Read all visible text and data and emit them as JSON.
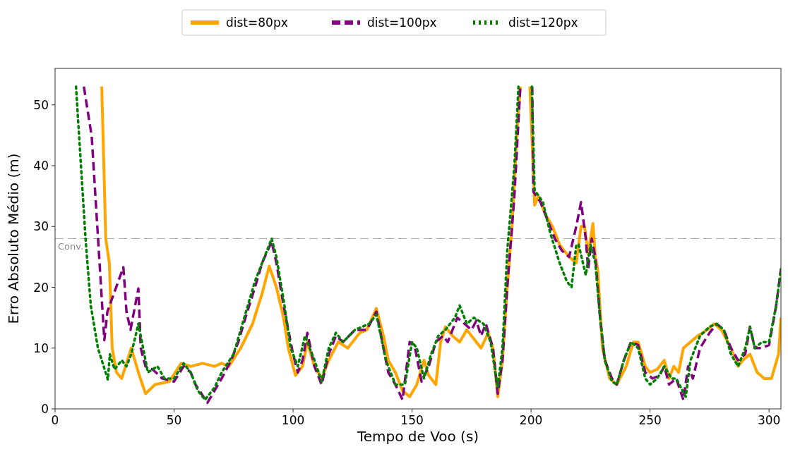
{
  "chart_data": {
    "type": "line",
    "xlabel": "Tempo de Voo (s)",
    "ylabel": "Erro Absoluto Médio (m)",
    "xlim": [
      0,
      305
    ],
    "xticks": [
      0,
      50,
      100,
      150,
      200,
      250,
      300
    ],
    "ylim": [
      0,
      56
    ],
    "yticks": [
      0,
      10,
      20,
      30,
      40,
      50
    ],
    "grid": false,
    "legend": "top",
    "ref_lines": [
      {
        "axis": "y",
        "value": 28,
        "label": "Conv.",
        "color": "#aaaaaa",
        "line_style": "dashed"
      }
    ],
    "series": [
      {
        "name": "dist=80px",
        "color": "#ffa500",
        "line_style": "solid",
        "x": [
          19.6,
          21.3,
          22.8,
          24,
          25.8,
          28,
          32,
          35,
          38,
          42,
          48,
          53,
          57,
          62,
          67,
          70,
          73,
          78,
          83,
          87,
          90,
          93,
          96,
          98,
          101,
          104,
          106,
          109,
          112,
          115,
          119,
          123,
          128,
          131,
          135,
          138,
          140,
          143,
          146,
          149,
          152,
          155,
          157,
          160,
          162,
          164,
          167,
          170,
          173,
          176,
          179,
          182,
          184,
          186,
          188,
          190,
          192,
          194,
          195.5,
          197.5,
          199.5,
          201.5,
          203,
          206,
          209,
          212,
          216,
          219,
          221,
          222.5,
          224,
          226,
          227,
          228,
          230,
          233,
          236,
          240,
          243,
          245,
          248,
          250,
          253,
          256,
          258,
          260,
          262,
          264,
          267,
          270,
          274,
          277,
          280,
          284,
          287,
          289,
          292,
          295,
          298,
          301,
          304,
          305
        ],
        "values": [
          53,
          28,
          24,
          10,
          6,
          5,
          10,
          6,
          2.5,
          4,
          4.5,
          7.5,
          7,
          7.5,
          7,
          7.5,
          7,
          10,
          14,
          19,
          23.5,
          20,
          15,
          10,
          5.5,
          7,
          11,
          7,
          5,
          8,
          11,
          10,
          12.5,
          13,
          16.5,
          12,
          8,
          6,
          3,
          2,
          4,
          8,
          5.5,
          4,
          11,
          13.5,
          12,
          11,
          13,
          11.5,
          10,
          12.5,
          10,
          2,
          8,
          20,
          30,
          45,
          53,
          null,
          53,
          33.5,
          35,
          32,
          30,
          27,
          25,
          24,
          30,
          30,
          25.5,
          30.5,
          25,
          23,
          10,
          5,
          4,
          7,
          11,
          11,
          7,
          6,
          6.5,
          8,
          5,
          7,
          6,
          10,
          11,
          12,
          13,
          14,
          13,
          10,
          7,
          8,
          9,
          6,
          5,
          5,
          9,
          15
        ]
      },
      {
        "name": "dist=100px",
        "color": "#800080",
        "line_style": "dashed",
        "x": [
          12.1,
          15.4,
          20.7,
          22,
          28.7,
          30,
          31.7,
          35,
          36,
          38,
          41,
          45,
          50,
          54,
          57,
          59,
          64,
          67,
          70,
          74,
          77,
          80,
          84,
          87,
          91,
          93,
          96,
          100,
          102,
          104,
          106,
          109,
          112,
          115,
          118,
          121,
          126,
          131,
          135,
          138,
          140,
          143,
          146,
          149,
          151,
          154,
          157,
          160,
          163,
          165,
          169,
          172,
          175,
          177,
          179,
          181,
          184,
          186,
          188,
          190,
          193,
          195.5,
          198,
          200.5,
          201,
          204,
          207,
          210,
          213,
          216,
          219,
          221,
          223,
          224,
          225.5,
          227,
          229,
          231,
          234,
          236,
          239,
          242,
          245,
          248,
          251,
          254,
          256,
          258,
          261,
          264,
          266,
          268,
          271,
          275,
          278,
          281,
          284,
          287,
          290,
          292,
          294,
          297,
          300,
          303,
          305
        ],
        "values": [
          53,
          44.8,
          11.3,
          16,
          23.3,
          16,
          13,
          19.8,
          10,
          7,
          6.5,
          5,
          4.5,
          7,
          6,
          4,
          1,
          3,
          5,
          8,
          11,
          15,
          20,
          24,
          27.5,
          24,
          17,
          9,
          6,
          8,
          12.5,
          7,
          4,
          9,
          12,
          11,
          13,
          13,
          16,
          10,
          6,
          4,
          1.5,
          11,
          10.5,
          4.5,
          7,
          11,
          12,
          11,
          15,
          14,
          13,
          14.5,
          12,
          14,
          10,
          2.5,
          8,
          20,
          35,
          53,
          null,
          53,
          35.7,
          34,
          31,
          28,
          26,
          25,
          30,
          34,
          28,
          23,
          28,
          25,
          15,
          8,
          5,
          4,
          8,
          11,
          10.5,
          6,
          5,
          5.5,
          7,
          4,
          5,
          1.5,
          7,
          5,
          10,
          12.5,
          14,
          13,
          10,
          8,
          9,
          13.5,
          10,
          10,
          10.5,
          17,
          23
        ]
      },
      {
        "name": "dist=120px",
        "color": "#008000",
        "line_style": "dotted",
        "x": [
          8.8,
          12.8,
          15,
          18,
          22.2,
          23,
          25,
          28,
          30,
          32,
          35,
          37,
          39,
          43,
          46,
          50,
          54,
          57,
          60,
          63,
          67,
          70,
          75,
          78,
          81,
          84,
          87,
          91,
          93,
          96,
          99,
          102,
          105,
          109,
          112,
          115,
          118,
          121,
          126,
          132,
          135,
          139,
          143,
          147,
          150,
          152,
          155,
          158,
          161,
          164,
          168,
          170,
          173,
          176,
          180,
          183,
          186,
          188,
          190,
          193,
          194.7,
          197.5,
          200.3,
          201.5,
          205,
          208,
          212,
          215,
          217,
          219,
          220,
          223,
          225,
          227,
          229,
          231,
          234,
          236,
          239,
          242,
          245,
          248,
          250,
          253,
          256,
          259,
          261,
          265,
          267,
          271,
          275,
          278,
          281,
          284,
          287,
          290,
          292,
          294,
          297,
          300,
          303,
          305
        ],
        "values": [
          53,
          28,
          17,
          10,
          4.8,
          9,
          6.5,
          8,
          7,
          9,
          14,
          10,
          6,
          7,
          5,
          5,
          7.5,
          6,
          3,
          1.5,
          3.5,
          6,
          9,
          13,
          17,
          21,
          24,
          28,
          25,
          18,
          10,
          7,
          12,
          8,
          4.5,
          10,
          12.5,
          11,
          13,
          14,
          15.5,
          8,
          4,
          4,
          11,
          10,
          5,
          9,
          12,
          13,
          15,
          17,
          14,
          15,
          14,
          11,
          3.5,
          10,
          26,
          40,
          53,
          null,
          53,
          36,
          34,
          29,
          24,
          21,
          20,
          27,
          27,
          22,
          27,
          24,
          15,
          8,
          4.5,
          4,
          8,
          11,
          10,
          5,
          4,
          5,
          7,
          5,
          5,
          2,
          8,
          12,
          13.5,
          14,
          13,
          9,
          7,
          10,
          13.5,
          10,
          11,
          11,
          17,
          23
        ]
      }
    ]
  }
}
